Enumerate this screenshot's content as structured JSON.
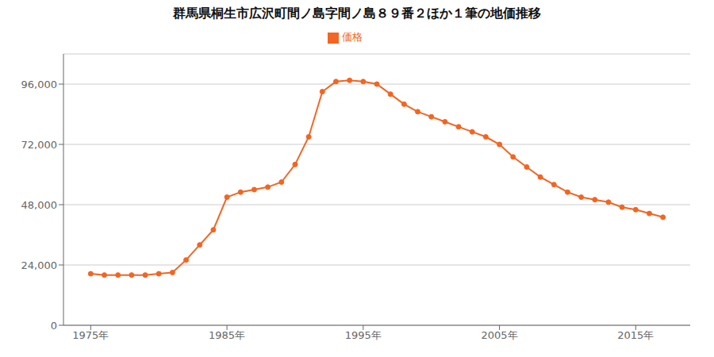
{
  "chart_data": {
    "type": "line",
    "title": "群馬県桐生市広沢町間ノ島字間ノ島８９番２ほか１筆の地価推移",
    "x": [
      1975,
      1976,
      1977,
      1978,
      1979,
      1980,
      1981,
      1982,
      1983,
      1984,
      1985,
      1986,
      1987,
      1988,
      1989,
      1990,
      1991,
      1992,
      1993,
      1994,
      1995,
      1996,
      1997,
      1998,
      1999,
      2000,
      2001,
      2002,
      2003,
      2004,
      2005,
      2006,
      2007,
      2008,
      2009,
      2010,
      2011,
      2012,
      2013,
      2014,
      2015,
      2016,
      2017
    ],
    "series": [
      {
        "name": "価格",
        "color": "#F26522",
        "marker": "circle",
        "values": [
          20500,
          20000,
          20000,
          20000,
          20000,
          20500,
          21000,
          26000,
          32000,
          38000,
          51000,
          53000,
          54000,
          55000,
          57000,
          64000,
          75000,
          93000,
          97000,
          97500,
          97000,
          96000,
          92000,
          88000,
          85000,
          83000,
          81000,
          79000,
          77000,
          75000,
          72000,
          67000,
          63000,
          59000,
          56000,
          53000,
          51000,
          50000,
          49000,
          47000,
          46000,
          44500,
          43000
        ]
      }
    ],
    "xlim": [
      1973,
      2019
    ],
    "xticks": [
      {
        "value": 1975,
        "label": "1975年"
      },
      {
        "value": 1985,
        "label": "1985年"
      },
      {
        "value": 1995,
        "label": "1995年"
      },
      {
        "value": 2005,
        "label": "2005年"
      },
      {
        "value": 2015,
        "label": "2015年"
      }
    ],
    "ylim": [
      0,
      108000
    ],
    "yticks": [
      0,
      {
        "value": 24000,
        "label": "24,000"
      },
      {
        "value": 48000,
        "label": "48,000"
      },
      {
        "value": 72000,
        "label": "72,000"
      },
      {
        "value": 96000,
        "label": "96,000"
      }
    ],
    "grid": "y",
    "legend": "top"
  }
}
